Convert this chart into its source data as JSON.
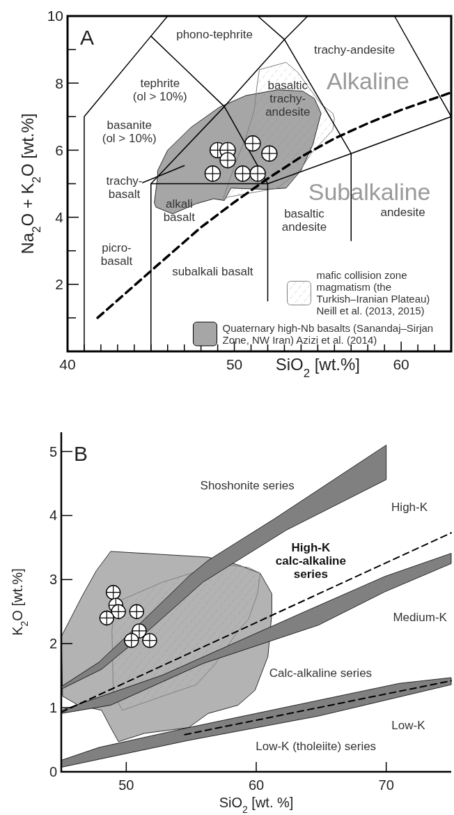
{
  "chart_data": [
    {
      "type": "scatter",
      "title": "A",
      "xlabel": "SiO$_{2}$ [wt.%]",
      "ylabel": "Na$_{2}$O + K$_{2}$O [wt.%]",
      "xlim": [
        40,
        63
      ],
      "ylim": [
        0,
        10
      ],
      "xticks": [
        40,
        {
          "value": 41,
          "label": null
        },
        {
          "value": 42,
          "label": null
        },
        {
          "value": 43,
          "label": null
        },
        {
          "value": 44,
          "label": null
        },
        {
          "value": 45,
          "label": null
        },
        {
          "value": 46,
          "label": null
        },
        {
          "value": 47,
          "label": null
        },
        {
          "value": 48,
          "label": null
        },
        {
          "value": 49,
          "label": null
        },
        50,
        {
          "value": 51,
          "label": null
        },
        {
          "value": 52,
          "label": null
        },
        {
          "value": 53,
          "label": null
        },
        {
          "value": 54,
          "label": null
        },
        {
          "value": 55,
          "label": null
        },
        {
          "value": 56,
          "label": null
        },
        {
          "value": 57,
          "label": null
        },
        {
          "value": 58,
          "label": null
        },
        {
          "value": 59,
          "label": null
        },
        60,
        {
          "value": 61,
          "label": null
        },
        {
          "value": 62,
          "label": null
        }
      ],
      "yticks": [
        {
          "value": 1,
          "label": null
        },
        2,
        {
          "value": 3,
          "label": null
        },
        4,
        {
          "value": 5,
          "label": null
        },
        6,
        {
          "value": 7,
          "label": null
        },
        8,
        {
          "value": 9,
          "label": null
        },
        10
      ],
      "legend": "bottom right",
      "series": [
        {
          "type": "area",
          "name": "Quaternary high-Nb basalts (Sanandaj–Sirjan Zone, NW Iran) Azizi et al. (2014)",
          "color": "#a6a6a6",
          "x": [
            45.4,
            45.2,
            45.3,
            46.3,
            47.7,
            48.75,
            49.4,
            49.8,
            51.9,
            53.1,
            54.0,
            54.7,
            55.2,
            54.8,
            54.1,
            52.6,
            50.7,
            49.1,
            47.4,
            46.0,
            45.4
          ],
          "values": [
            5.2,
            4.44,
            4.3,
            4.1,
            4.4,
            4.55,
            4.5,
            4.87,
            4.83,
            4.87,
            5.4,
            6.16,
            7.1,
            7.54,
            7.76,
            7.8,
            7.63,
            7.28,
            6.68,
            6.0,
            5.39
          ]
        },
        {
          "type": "area",
          "line_style": "dashed",
          "name": "mafic collision zone magmatism (the Turkish–Iranian Plateau) Neill et al. (2013, 2015)",
          "color": "#808080",
          "x": [
            51.5,
            53.1,
            53.8,
            55.2,
            55.9,
            56.0,
            55.9,
            54.6,
            53.95,
            52.6,
            49.6,
            49.3,
            49.6,
            50.1,
            50.7,
            51.2,
            51.35,
            51.5
          ],
          "values": [
            8.4,
            8.62,
            8.32,
            7.37,
            7.1,
            6.94,
            6.6,
            5.9,
            5.4,
            4.87,
            4.6,
            4.5,
            4.95,
            5.65,
            6.4,
            7.2,
            7.9,
            8.4
          ]
        },
        {
          "type": "line",
          "color": "#000000",
          "x": [
            41,
            41,
            45,
            46
          ],
          "values": [
            0,
            7,
            9.4,
            10
          ]
        },
        {
          "type": "line",
          "color": "#000000",
          "x": [
            45,
            49.4,
            52,
            52
          ],
          "values": [
            9.4,
            7.3,
            5,
            1.5
          ]
        },
        {
          "type": "line",
          "color": "#000000",
          "x": [
            45,
            45,
            52,
            57,
            63
          ],
          "values": [
            0,
            5,
            5,
            5.9,
            7
          ]
        },
        {
          "type": "line",
          "color": "#000000",
          "x": [
            45,
            49.4,
            53,
            54.4
          ],
          "values": [
            5,
            7.3,
            9.3,
            10
          ]
        },
        {
          "type": "line",
          "color": "#000000",
          "x": [
            57,
            57,
            53,
            51.4
          ],
          "values": [
            3.3,
            5.9,
            9.3,
            10
          ]
        },
        {
          "type": "line",
          "color": "#000000",
          "x": [
            59.6,
            63
          ],
          "values": [
            10,
            7
          ]
        },
        {
          "type": "line",
          "color": "#000000",
          "x": [
            44.5,
            47.0
          ],
          "values": [
            5.03,
            5.54
          ]
        },
        {
          "type": "line",
          "line_style": "dashed",
          "color": "#000000",
          "x": [
            41.8,
            45,
            48,
            50,
            52,
            54,
            56,
            58,
            60,
            63
          ],
          "values": [
            1.0,
            2.4,
            3.7,
            4.45,
            5.15,
            5.8,
            6.35,
            6.8,
            7.2,
            7.72
          ]
        },
        {
          "marker": "circle",
          "color": "#ffffff",
          "x": [
            49.0,
            49.6,
            49.6,
            48.7,
            51.1,
            52.1,
            50.5,
            51.4
          ],
          "values": [
            6.0,
            6.0,
            5.7,
            5.3,
            6.2,
            5.9,
            5.3,
            5.3
          ]
        }
      ],
      "annotations": [
        "phono-tephrite",
        "trachy-andesite",
        "tephrite\n(ol > 10%)",
        "Alkaline",
        "basanite\n(ol > 10%)",
        "basaltic\ntrachy-\nandesite",
        "trachy-\nbasalt",
        "Subalkaline",
        "alkali\nbasalt",
        "basaltic\nandesite",
        "andesite",
        "picro-\nbasalt",
        "subalkali basalt"
      ]
    },
    {
      "type": "scatter",
      "title": "B",
      "xlabel": "SiO$_{2}$ [wt. %]",
      "ylabel": "K$_{2}$O [wt.%]",
      "xlim": [
        45,
        75
      ],
      "ylim": [
        0,
        5.3
      ],
      "xticks": [
        50,
        60,
        70
      ],
      "yticks": [
        0,
        1,
        2,
        3,
        4,
        5
      ],
      "series": [
        {
          "type": "area",
          "color": "#b3b3b3",
          "x": [
            48.8,
            56.3,
            58.6,
            60.3,
            61.2,
            61.2,
            60.9,
            59.9,
            58.6,
            56.3,
            54.8,
            51.4,
            49.4,
            48.8,
            48.1,
            46.3,
            45.1,
            45,
            46.6,
            47.7,
            48.8
          ],
          "values": [
            3.44,
            3.35,
            3.23,
            3.1,
            2.78,
            2.47,
            1.8,
            1.27,
            1.04,
            0.91,
            0.69,
            0.6,
            0.47,
            0.69,
            0.96,
            1.04,
            1.18,
            2.11,
            2.74,
            3.14,
            3.44
          ]
        },
        {
          "type": "area",
          "line_style": "dashed",
          "color": "#808080",
          "x": [
            49.7,
            52.8,
            55,
            57.7,
            59.4,
            60.3,
            60.1,
            59.4,
            58.6,
            56.8,
            55.4,
            52.8,
            49.7,
            49,
            48.9,
            49,
            49.7
          ],
          "values": [
            2.69,
            2.96,
            3.1,
            3.23,
            3.19,
            3.1,
            2.78,
            2.38,
            2.2,
            1.67,
            1.36,
            1.18,
            0.96,
            1.22,
            2.2,
            2.47,
            2.69
          ]
        },
        {
          "type": "area",
          "color": "#808080",
          "x": [
            45,
            47.9,
            51.4,
            54.8,
            56.3,
            61.4,
            70,
            70,
            62.3,
            55.9,
            51.9,
            48.1,
            45
          ],
          "values": [
            1.33,
            1.71,
            2.38,
            3.05,
            3.3,
            3.95,
            5.1,
            4.56,
            3.77,
            2.96,
            2.24,
            1.6,
            1.29
          ]
        },
        {
          "type": "area",
          "color": "#808080",
          "x": [
            45,
            52.8,
            63.4,
            69.9,
            75,
            75,
            69.9,
            64.8,
            55.9,
            48.8,
            45
          ],
          "values": [
            0.96,
            1.51,
            2.47,
            3.05,
            3.41,
            3.25,
            2.81,
            2.29,
            1.69,
            1.04,
            0.91
          ]
        },
        {
          "type": "area",
          "color": "#808080",
          "x": [
            45,
            47.9,
            54.8,
            71,
            75,
            75,
            64.8,
            54.8,
            45
          ],
          "values": [
            0.18,
            0.38,
            0.69,
            1.38,
            1.47,
            1.36,
            0.87,
            0.49,
            0.07
          ]
        },
        {
          "type": "line",
          "line_style": "dashed",
          "color": "#000000",
          "x": [
            45,
            75
          ],
          "values": [
            0.93,
            3.73
          ]
        },
        {
          "type": "line",
          "line_style": "dashed",
          "color": "#000000",
          "x": [
            54.5,
            75
          ],
          "values": [
            0.58,
            1.42
          ]
        },
        {
          "marker": "circle",
          "color": "#ffffff",
          "x": [
            49.0,
            49.2,
            49.4,
            50.8,
            48.5,
            51.0,
            50.4,
            51.8
          ],
          "values": [
            2.8,
            2.6,
            2.5,
            2.5,
            2.4,
            2.2,
            2.05,
            2.05
          ]
        }
      ],
      "annotations": [
        "Shoshonite series",
        "High-K",
        "High-K\ncalc-alkaline\nseries",
        "Medium-K",
        "Calc-alkaline series",
        "Low-K",
        "Low-K (tholeiite) series"
      ]
    }
  ]
}
